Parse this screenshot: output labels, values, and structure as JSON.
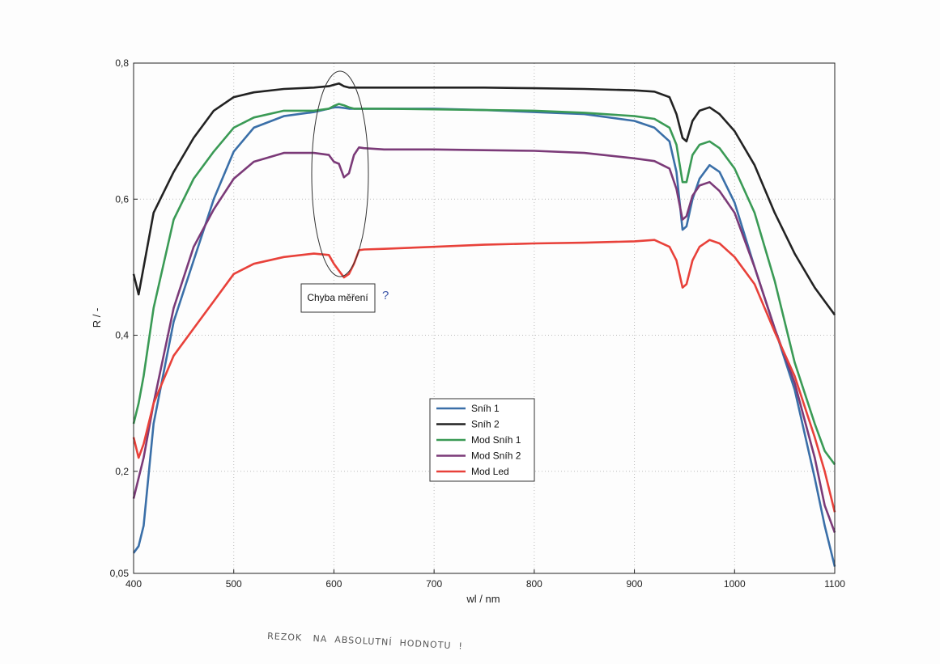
{
  "chart_data": {
    "type": "line",
    "xlabel": "wl / nm",
    "ylabel": "R / -",
    "xlim": [
      400,
      1100
    ],
    "ylim": [
      0.05,
      0.8
    ],
    "grid": true,
    "x_ticks": [
      "400",
      "500",
      "600",
      "700",
      "800",
      "900",
      "1000",
      "1100"
    ],
    "y_ticks": [
      "0,05",
      "0,2",
      "0,4",
      "0,6",
      "0,8"
    ],
    "legend_position": "center-bottom",
    "x": [
      400,
      405,
      410,
      420,
      440,
      460,
      480,
      500,
      520,
      550,
      580,
      595,
      600,
      605,
      610,
      615,
      620,
      625,
      630,
      650,
      700,
      750,
      800,
      850,
      900,
      920,
      935,
      942,
      948,
      952,
      958,
      965,
      975,
      985,
      1000,
      1020,
      1040,
      1060,
      1080,
      1090,
      1100
    ],
    "series": [
      {
        "name": "Sníh 1",
        "color": "#3a6fa8",
        "values": [
          0.08,
          0.09,
          0.12,
          0.27,
          0.42,
          0.51,
          0.6,
          0.67,
          0.705,
          0.722,
          0.728,
          0.733,
          0.735,
          0.735,
          0.734,
          0.733,
          0.733,
          0.733,
          0.733,
          0.733,
          0.733,
          0.731,
          0.728,
          0.725,
          0.715,
          0.705,
          0.685,
          0.64,
          0.555,
          0.56,
          0.6,
          0.63,
          0.65,
          0.64,
          0.595,
          0.5,
          0.41,
          0.32,
          0.19,
          0.12,
          0.06
        ]
      },
      {
        "name": "Sníh 2",
        "color": "#222222",
        "values": [
          0.49,
          0.46,
          0.5,
          0.58,
          0.64,
          0.69,
          0.73,
          0.75,
          0.757,
          0.762,
          0.764,
          0.766,
          0.768,
          0.77,
          0.766,
          0.764,
          0.764,
          0.764,
          0.764,
          0.764,
          0.764,
          0.764,
          0.763,
          0.762,
          0.76,
          0.758,
          0.75,
          0.725,
          0.69,
          0.685,
          0.715,
          0.73,
          0.735,
          0.725,
          0.7,
          0.65,
          0.58,
          0.52,
          0.47,
          0.45,
          0.43
        ]
      },
      {
        "name": "Mod Sníh 1",
        "color": "#3a9a55",
        "values": [
          0.27,
          0.3,
          0.34,
          0.44,
          0.57,
          0.63,
          0.67,
          0.705,
          0.72,
          0.73,
          0.73,
          0.733,
          0.737,
          0.74,
          0.738,
          0.735,
          0.733,
          0.733,
          0.733,
          0.733,
          0.732,
          0.731,
          0.73,
          0.727,
          0.722,
          0.718,
          0.705,
          0.68,
          0.625,
          0.625,
          0.665,
          0.68,
          0.685,
          0.675,
          0.645,
          0.58,
          0.48,
          0.36,
          0.27,
          0.23,
          0.21
        ]
      },
      {
        "name": "Mod Sníh 2",
        "color": "#7b3a78",
        "values": [
          0.16,
          0.19,
          0.22,
          0.3,
          0.44,
          0.53,
          0.585,
          0.63,
          0.655,
          0.668,
          0.668,
          0.665,
          0.655,
          0.652,
          0.632,
          0.638,
          0.665,
          0.676,
          0.675,
          0.673,
          0.673,
          0.672,
          0.671,
          0.668,
          0.66,
          0.656,
          0.645,
          0.615,
          0.57,
          0.575,
          0.605,
          0.62,
          0.625,
          0.612,
          0.58,
          0.5,
          0.41,
          0.33,
          0.22,
          0.15,
          0.11
        ]
      },
      {
        "name": "Mod Led",
        "color": "#e8413a",
        "values": [
          0.25,
          0.22,
          0.24,
          0.3,
          0.37,
          0.41,
          0.45,
          0.49,
          0.505,
          0.515,
          0.52,
          0.518,
          0.505,
          0.495,
          0.485,
          0.49,
          0.505,
          0.525,
          0.526,
          0.527,
          0.53,
          0.533,
          0.535,
          0.536,
          0.538,
          0.54,
          0.53,
          0.51,
          0.47,
          0.475,
          0.51,
          0.53,
          0.54,
          0.535,
          0.515,
          0.475,
          0.405,
          0.34,
          0.25,
          0.2,
          0.14
        ]
      }
    ],
    "annotation": {
      "text": "Chyba měření"
    }
  }
}
